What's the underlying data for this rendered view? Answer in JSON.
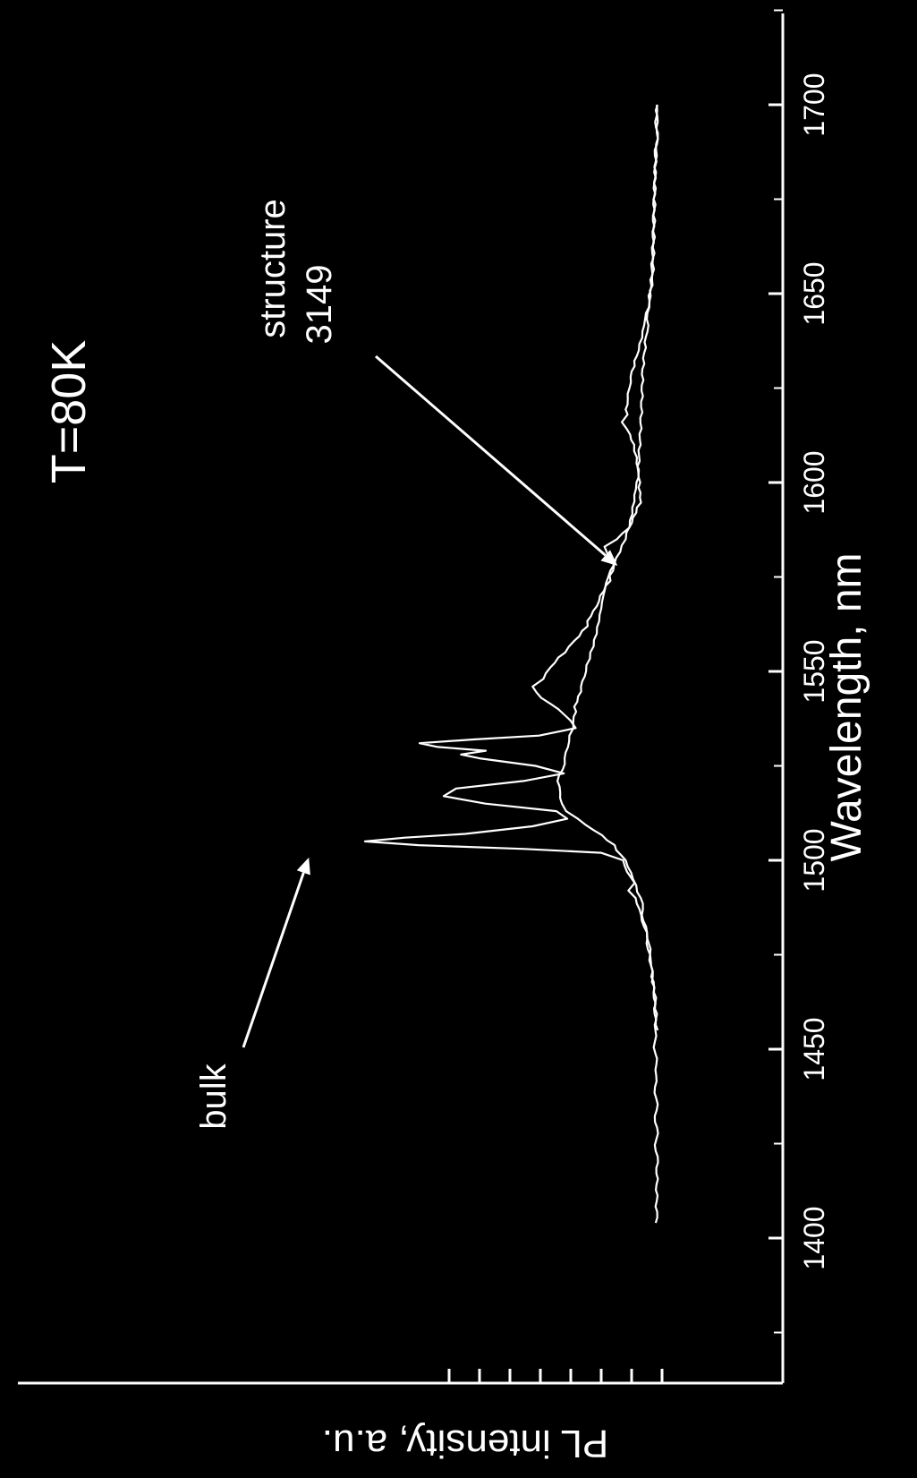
{
  "chart_data": {
    "type": "line",
    "title": "T=80K",
    "xlabel": "Wavelength, nm",
    "ylabel": "PL intensity, a.u.",
    "xlim": [
      1375,
      1725
    ],
    "ylim": [
      0,
      100
    ],
    "x_ticks": [
      1400,
      1450,
      1500,
      1550,
      1600,
      1650,
      1700
    ],
    "y_minor_ticks": [
      0,
      10,
      20,
      30,
      40,
      50,
      60,
      70
    ],
    "grid": false,
    "background": "#000000",
    "foreground": "#ffffff",
    "series": [
      {
        "name": "bulk",
        "points": [
          [
            1404,
            1.5
          ],
          [
            1420,
            1.8
          ],
          [
            1440,
            2.0
          ],
          [
            1455,
            2.2
          ],
          [
            1465,
            2.5
          ],
          [
            1472,
            3.2
          ],
          [
            1478,
            4.8
          ],
          [
            1484,
            6.3
          ],
          [
            1490,
            8.5
          ],
          [
            1492,
            11.2
          ],
          [
            1494,
            9.5
          ],
          [
            1497,
            11.0
          ],
          [
            1500,
            13.0
          ],
          [
            1502,
            20.0
          ],
          [
            1503,
            45.0
          ],
          [
            1504,
            80.0
          ],
          [
            1505,
            98.0
          ],
          [
            1506,
            85.0
          ],
          [
            1507,
            65.0
          ],
          [
            1509,
            42.0
          ],
          [
            1511,
            31.0
          ],
          [
            1513,
            35.0
          ],
          [
            1515,
            58.0
          ],
          [
            1517,
            72.0
          ],
          [
            1519,
            68.0
          ],
          [
            1521,
            45.0
          ],
          [
            1523,
            32.0
          ],
          [
            1525,
            42.0
          ],
          [
            1527,
            60.0
          ],
          [
            1528,
            66.0
          ],
          [
            1529,
            58.0
          ],
          [
            1530,
            74.0
          ],
          [
            1531,
            80.0
          ],
          [
            1532,
            62.0
          ],
          [
            1533,
            40.0
          ],
          [
            1535,
            28.0
          ],
          [
            1537,
            30.5
          ],
          [
            1540,
            34.0
          ],
          [
            1543,
            40.0
          ],
          [
            1546,
            42.0
          ],
          [
            1548,
            39.0
          ],
          [
            1551,
            37.0
          ],
          [
            1555,
            32.0
          ],
          [
            1558,
            28.5
          ],
          [
            1562,
            25.0
          ],
          [
            1566,
            22.5
          ],
          [
            1570,
            20.0
          ],
          [
            1574,
            17.5
          ],
          [
            1578,
            15.5
          ],
          [
            1580,
            17.0
          ],
          [
            1583,
            18.5
          ],
          [
            1585,
            15.0
          ],
          [
            1588,
            11.0
          ],
          [
            1592,
            8.5
          ],
          [
            1596,
            7.0
          ],
          [
            1600,
            7.5
          ],
          [
            1605,
            8.5
          ],
          [
            1610,
            9.5
          ],
          [
            1614,
            11.0
          ],
          [
            1616,
            13.0
          ],
          [
            1618,
            11.5
          ],
          [
            1622,
            11.5
          ],
          [
            1628,
            10.0
          ],
          [
            1635,
            8.0
          ],
          [
            1640,
            6.0
          ],
          [
            1648,
            4.5
          ],
          [
            1655,
            3.5
          ],
          [
            1665,
            2.8
          ],
          [
            1675,
            2.4
          ],
          [
            1685,
            2.0
          ],
          [
            1700,
            1.5
          ]
        ]
      },
      {
        "name": "structure 3149",
        "points": [
          [
            1455,
            2.0
          ],
          [
            1465,
            2.5
          ],
          [
            1472,
            3.3
          ],
          [
            1478,
            4.5
          ],
          [
            1484,
            5.8
          ],
          [
            1490,
            7.0
          ],
          [
            1495,
            9.0
          ],
          [
            1500,
            12.0
          ],
          [
            1504,
            16.0
          ],
          [
            1508,
            22.0
          ],
          [
            1511,
            28.0
          ],
          [
            1513,
            31.5
          ],
          [
            1515,
            33.0
          ],
          [
            1518,
            33.5
          ],
          [
            1521,
            34.0
          ],
          [
            1524,
            33.0
          ],
          [
            1527,
            32.0
          ],
          [
            1530,
            31.0
          ],
          [
            1533,
            30.0
          ],
          [
            1535,
            29.5
          ],
          [
            1538,
            29.0
          ],
          [
            1542,
            28.0
          ],
          [
            1546,
            26.5
          ],
          [
            1550,
            25.0
          ],
          [
            1555,
            23.5
          ],
          [
            1560,
            22.0
          ],
          [
            1565,
            20.5
          ],
          [
            1570,
            19.0
          ],
          [
            1575,
            17.5
          ],
          [
            1580,
            15.0
          ],
          [
            1585,
            12.5
          ],
          [
            1590,
            10.5
          ],
          [
            1595,
            9.0
          ],
          [
            1600,
            8.0
          ],
          [
            1610,
            7.5
          ],
          [
            1620,
            7.0
          ],
          [
            1630,
            6.5
          ],
          [
            1640,
            5.0
          ],
          [
            1648,
            4.0
          ],
          [
            1655,
            3.3
          ],
          [
            1665,
            2.8
          ],
          [
            1675,
            2.3
          ],
          [
            1685,
            1.9
          ],
          [
            1700,
            1.7
          ]
        ]
      }
    ],
    "annotations": [
      {
        "text": "bulk",
        "points_to": [
          1505,
          97
        ]
      },
      {
        "text": "structure",
        "text2": "3149",
        "points_to": [
          1577,
          15.5
        ]
      }
    ]
  }
}
